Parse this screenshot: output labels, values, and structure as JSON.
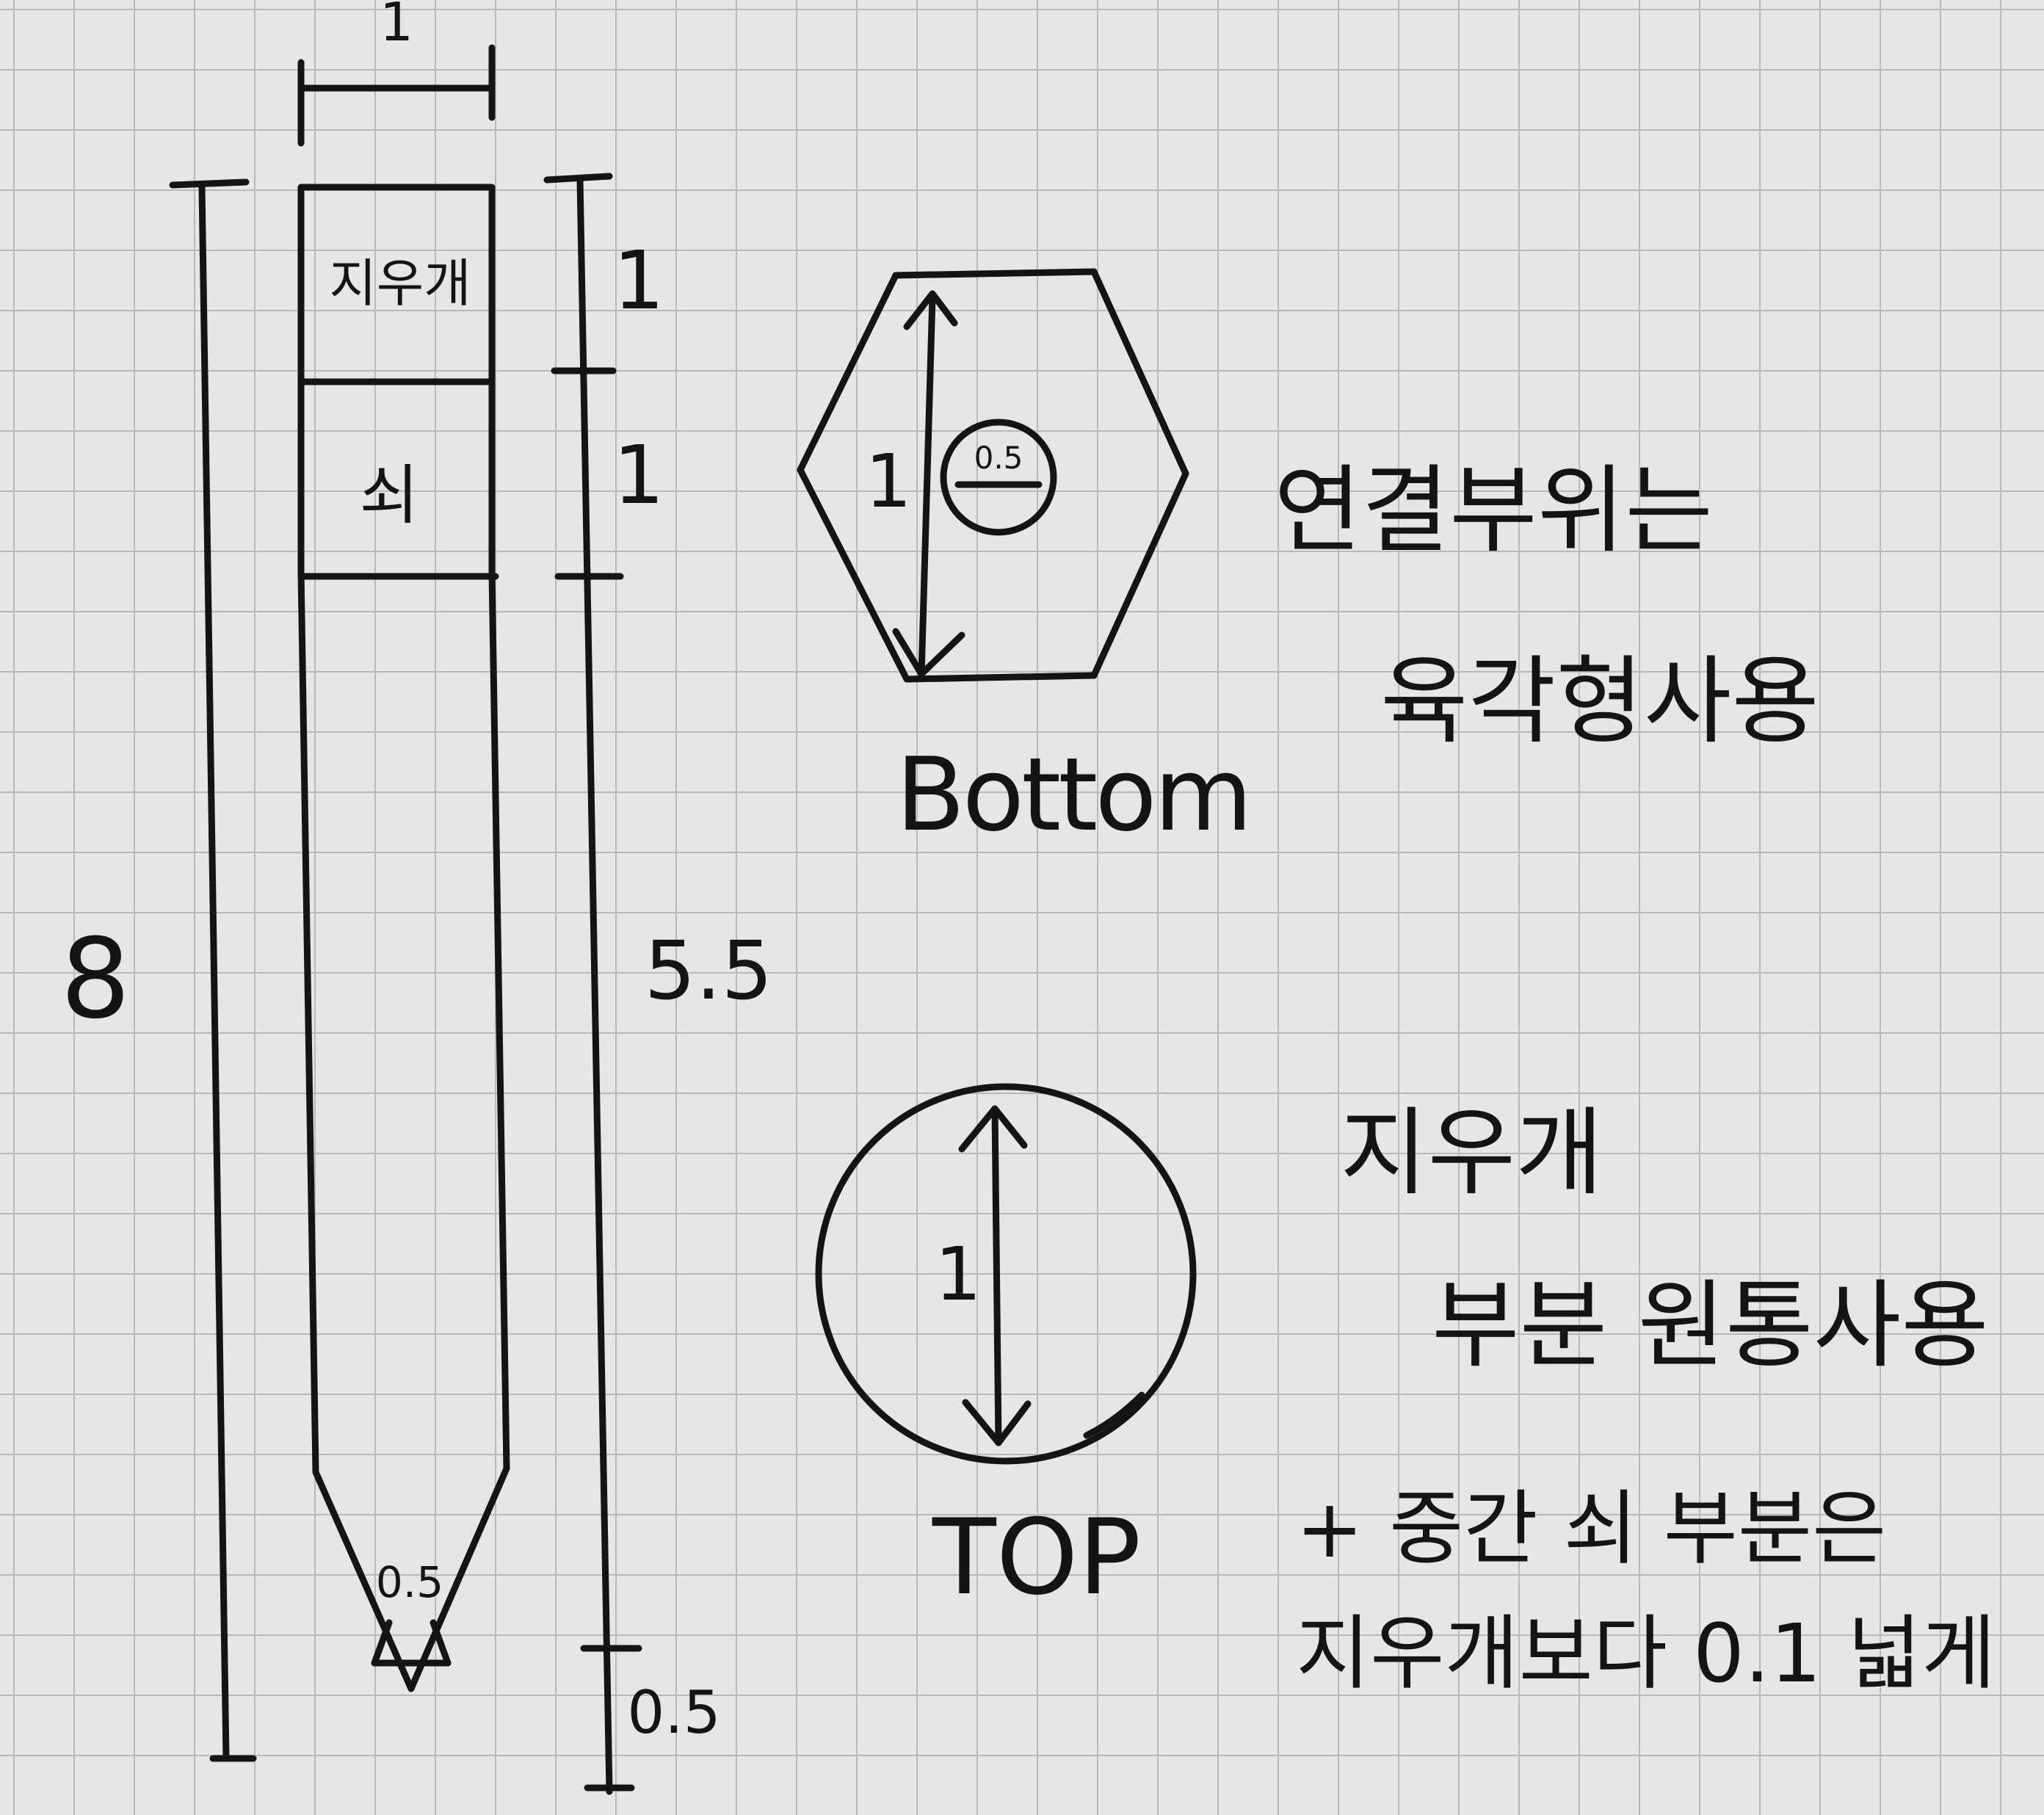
{
  "pencil": {
    "top_width": "1",
    "section_eraser": "지우개",
    "section_metal": "쇠",
    "total_length": "8",
    "dim_eraser": "1",
    "dim_metal": "1",
    "dim_body": "5.5",
    "dim_tip": "0.5",
    "tip_width": "0.5"
  },
  "bottom_view": {
    "diameter": "1",
    "hole": "0.5",
    "caption": "Bottom"
  },
  "top_view": {
    "diameter": "1",
    "caption": "TOP"
  },
  "notes": {
    "hexagon_line1": "연결부위는",
    "hexagon_line2": "육각형사용",
    "round_line1": "지우개",
    "round_line2": "부분 원통사용",
    "extra_line1": "+ 중간 쇠 부분은",
    "extra_line2": "지우개보다 0.1 넓게"
  }
}
